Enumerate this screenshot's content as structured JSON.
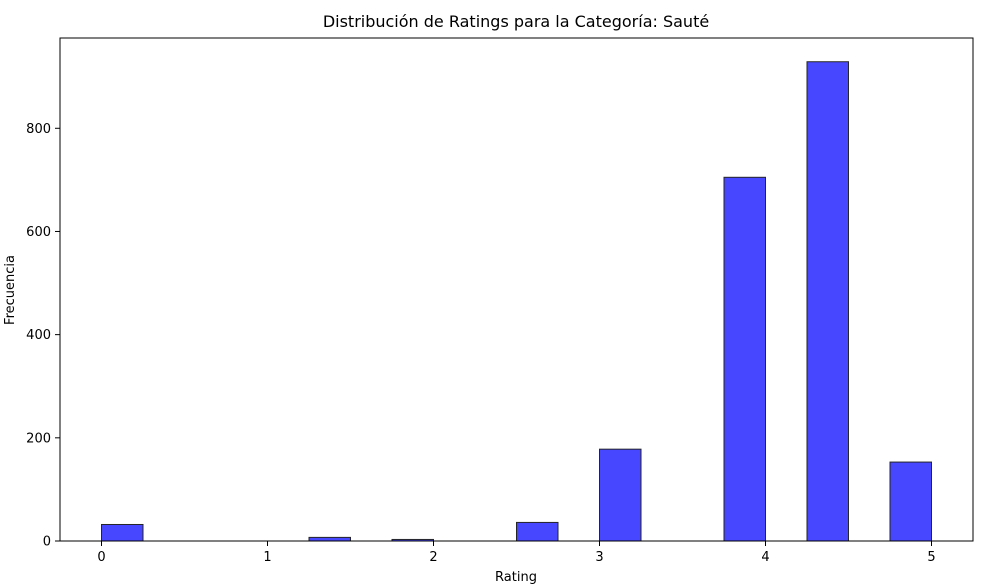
{
  "chart_data": {
    "type": "bar",
    "title": "Distribución de Ratings para la Categoría: Sauté",
    "xlabel": "Rating",
    "ylabel": "Frecuencia",
    "xlim": [
      -0.25,
      5.25
    ],
    "ylim": [
      0,
      975
    ],
    "xticks": [
      0,
      1,
      2,
      3,
      4,
      5
    ],
    "yticks": [
      0,
      200,
      400,
      600,
      800
    ],
    "bin_width": 0.25,
    "bars": [
      {
        "x0": 0.0,
        "x1": 0.25,
        "value": 32
      },
      {
        "x0": 1.25,
        "x1": 1.5,
        "value": 7
      },
      {
        "x0": 2.0,
        "x1": 2.0,
        "value": 0
      },
      {
        "x0": 1.75,
        "x1": 2.0,
        "value": 3
      },
      {
        "x0": 2.5,
        "x1": 2.75,
        "value": 36
      },
      {
        "x0": 3.0,
        "x1": 3.25,
        "value": 178
      },
      {
        "x0": 3.75,
        "x1": 4.0,
        "value": 705
      },
      {
        "x0": 4.25,
        "x1": 4.5,
        "value": 929
      },
      {
        "x0": 4.75,
        "x1": 5.0,
        "value": 153
      }
    ],
    "bar_color": "#4747ff",
    "edge_color": "#262626",
    "grid": false,
    "legend": "none"
  }
}
